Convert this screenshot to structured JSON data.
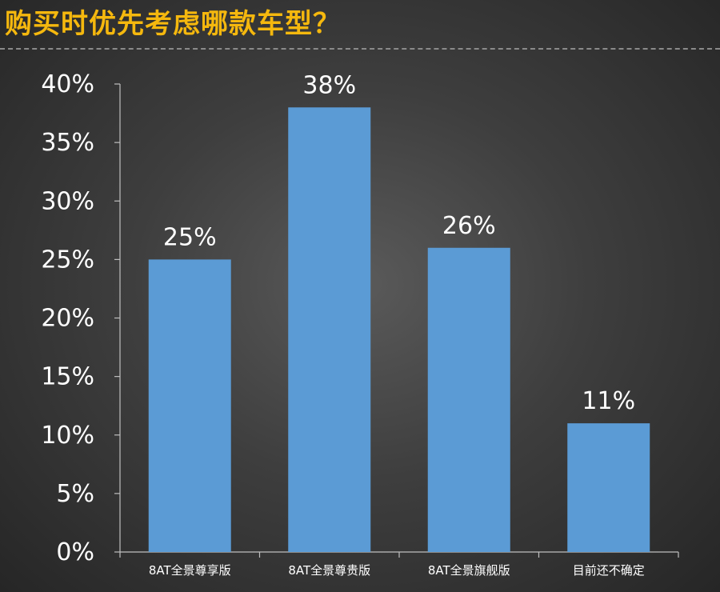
{
  "page": {
    "title": "购买时优先考虑哪款车型？"
  },
  "colors": {
    "title": "#f5b80e",
    "bar": "#5b9bd5",
    "axis": "#bfbfbf",
    "text": "#ffffff",
    "background_center": "#5a5a5a",
    "background_edge": "#262626"
  },
  "chart_data": {
    "type": "bar",
    "title": "购买时优先考虑哪款车型？",
    "categories": [
      "8AT全景尊享版",
      "8AT全景尊贵版",
      "8AT全景旗舰版",
      "目前还不确定"
    ],
    "values": [
      25,
      38,
      26,
      11
    ],
    "value_labels": [
      "25%",
      "38%",
      "26%",
      "11%"
    ],
    "ylim": [
      0,
      40
    ],
    "yticks": [
      0,
      5,
      10,
      15,
      20,
      25,
      30,
      35,
      40
    ],
    "ytick_labels": [
      "0%",
      "5%",
      "10%",
      "15%",
      "20%",
      "25%",
      "30%",
      "35%",
      "40%"
    ],
    "xlabel": "",
    "ylabel": "",
    "grid": false,
    "legend": "none"
  }
}
